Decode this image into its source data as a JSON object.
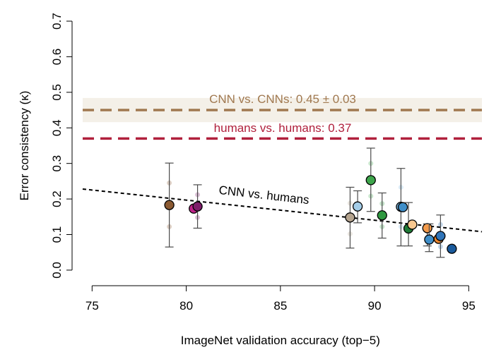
{
  "chart_data": {
    "type": "scatter",
    "title": "",
    "xlabel": "ImageNet validation accuracy (top−5)",
    "ylabel": "Error consistency (κ)",
    "xlim": [
      74.5,
      95.7
    ],
    "ylim": [
      -0.02,
      0.7
    ],
    "x_ticks": [
      75,
      80,
      85,
      90,
      95
    ],
    "x_tick_labels": [
      "75",
      "80",
      "85",
      "90",
      "95"
    ],
    "y_ticks": [
      0.0,
      0.1,
      0.2,
      0.3,
      0.4,
      0.5,
      0.6,
      0.7
    ],
    "y_tick_labels": [
      "0.0",
      "0.1",
      "0.2",
      "0.3",
      "0.4",
      "0.5",
      "0.6",
      "0.7"
    ],
    "grid": false,
    "reference_lines": [
      {
        "name": "cnn-vs-cnns",
        "label": "CNN vs. CNNs: 0.45 ± 0.03",
        "value": 0.45,
        "band": [
          0.416,
          0.484
        ],
        "color": "#a0784f",
        "band_color": "#f4f0e8",
        "style": "dashed"
      },
      {
        "name": "humans-vs-humans",
        "label": "humans vs. humans: 0.37",
        "value": 0.37,
        "color": "#b0203c",
        "style": "dashed"
      }
    ],
    "trend_line": {
      "label": "CNN vs. humans",
      "x": [
        74.5,
        95.7
      ],
      "y": [
        0.228,
        0.108
      ],
      "color": "#000000",
      "style": "dotted"
    },
    "series": [
      {
        "name": "model-1",
        "x": 79.1,
        "y": 0.183,
        "err": [
          0.065,
          0.301
        ],
        "color": "#8b5a32",
        "faint": [
          0.245,
          0.122
        ]
      },
      {
        "name": "model-2",
        "x": 80.4,
        "y": 0.173,
        "err": null,
        "color": "#c0208a",
        "faint": []
      },
      {
        "name": "model-3",
        "x": 80.6,
        "y": 0.179,
        "err": [
          0.118,
          0.24
        ],
        "color": "#7e1d6a",
        "faint": [
          0.212,
          0.148
        ]
      },
      {
        "name": "model-4",
        "x": 88.7,
        "y": 0.148,
        "err": [
          0.062,
          0.233
        ],
        "color": "#b5a48f",
        "faint": [
          0.188,
          0.102
        ]
      },
      {
        "name": "model-5",
        "x": 89.1,
        "y": 0.179,
        "err": [
          0.133,
          0.223
        ],
        "color": "#a4cde8",
        "faint": []
      },
      {
        "name": "model-6",
        "x": 89.8,
        "y": 0.253,
        "err": [
          0.165,
          0.343
        ],
        "color": "#3ea64c",
        "faint": [
          0.3,
          0.208
        ]
      },
      {
        "name": "model-7",
        "x": 90.4,
        "y": 0.154,
        "err": [
          0.09,
          0.217
        ],
        "color": "#2f9840",
        "faint": [
          0.187,
          0.122
        ]
      },
      {
        "name": "model-8",
        "x": 91.4,
        "y": 0.178,
        "err": [
          0.068,
          0.286
        ],
        "color": "#7ab4dc",
        "faint": [
          0.233,
          0.122
        ]
      },
      {
        "name": "model-9",
        "x": 91.5,
        "y": 0.177,
        "err": null,
        "color": "#3f8ec8",
        "faint": []
      },
      {
        "name": "model-10",
        "x": 91.8,
        "y": 0.117,
        "err": [
          0.068,
          0.19
        ],
        "color": "#1f7a36",
        "faint": []
      },
      {
        "name": "model-11",
        "x": 92.0,
        "y": 0.128,
        "err": null,
        "color": "#f8c890",
        "faint": []
      },
      {
        "name": "model-12",
        "x": 92.8,
        "y": 0.118,
        "err": [
          0.068,
          0.13
        ],
        "color": "#f39a4a",
        "faint": []
      },
      {
        "name": "model-13",
        "x": 92.9,
        "y": 0.086,
        "err": [
          0.052,
          0.13
        ],
        "color": "#3f8ec8",
        "faint": []
      },
      {
        "name": "model-14",
        "x": 93.4,
        "y": 0.088,
        "err": null,
        "color": "#e8852f",
        "faint": []
      },
      {
        "name": "model-15",
        "x": 93.5,
        "y": 0.096,
        "err": [
          0.036,
          0.155
        ],
        "color": "#2f74b8",
        "faint": [
          0.128,
          0.066
        ]
      },
      {
        "name": "model-16",
        "x": 94.1,
        "y": 0.06,
        "err": null,
        "color": "#1a5a9c",
        "faint": []
      }
    ]
  }
}
